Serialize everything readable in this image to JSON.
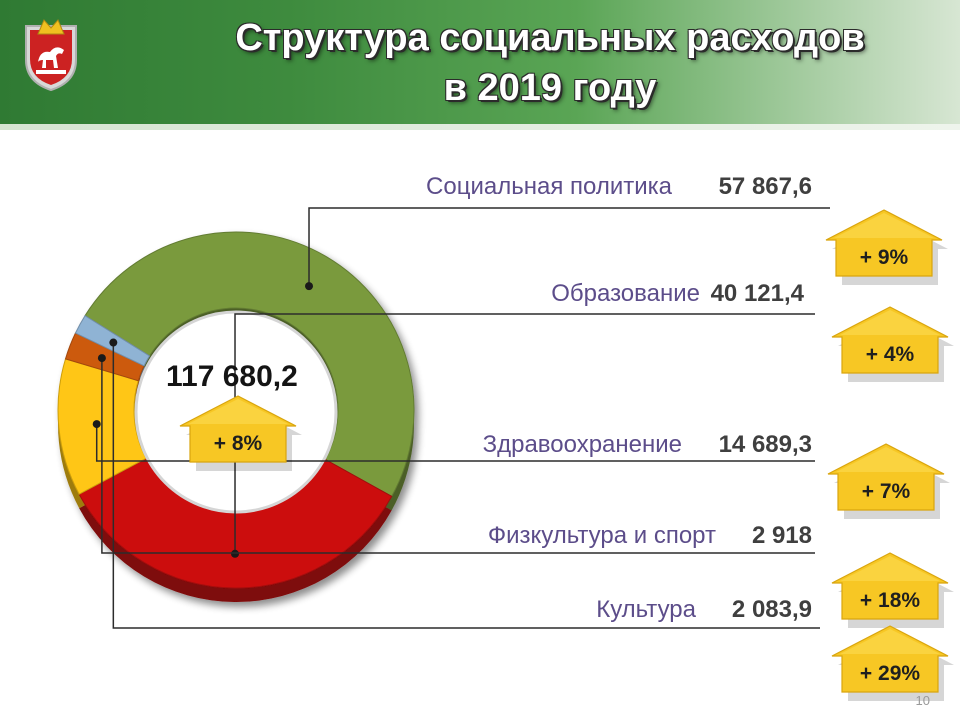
{
  "title": {
    "line1": "Структура социальных расходов",
    "line2": "в 2019 году"
  },
  "page_number": "10",
  "colors": {
    "header": "#3a8a3c",
    "social": "#7a9a3e",
    "education": "#cc0b0b",
    "health": "#ffc612",
    "sport": "#cc5a10",
    "culture": "#8fb3d4",
    "arrow": "#f7c724",
    "label": "#5c4d8a"
  },
  "icons": {
    "emblem": "coat-of-arms-icon",
    "arrow": "up-arrow-icon"
  },
  "chart_data": {
    "type": "pie",
    "style": "donut",
    "title": "Структура социальных расходов в 2019 году",
    "total": {
      "value": 117680.2,
      "label": "117 680,2",
      "change": "+ 8%"
    },
    "slices": [
      {
        "name": "Социальная политика",
        "value": 57867.6,
        "label": "57 867,6",
        "change": "+ 9%",
        "color": "#7a9a3e"
      },
      {
        "name": "Образование",
        "value": 40121.4,
        "label": "40 121,4",
        "change": "+ 4%",
        "color": "#cc0b0b"
      },
      {
        "name": "Здравоохранение",
        "value": 14689.3,
        "label": "14 689,3",
        "change": "+ 7%",
        "color": "#ffc612"
      },
      {
        "name": "Физкультура и спорт",
        "value": 2918,
        "label": "2 918",
        "change": "+ 18%",
        "color": "#cc5a10"
      },
      {
        "name": "Культура",
        "value": 2083.9,
        "label": "2 083,9",
        "change": "+ 29%",
        "color": "#8fb3d4"
      }
    ]
  }
}
